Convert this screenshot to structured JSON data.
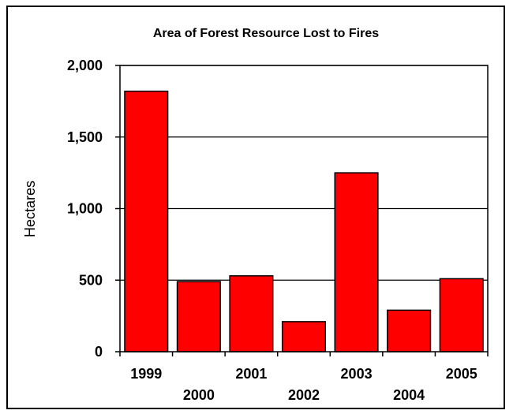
{
  "chart_data": {
    "type": "bar",
    "title": "Area of Forest Resource Lost to Fires",
    "xlabel": "",
    "ylabel": "Hectares",
    "categories": [
      "1999",
      "2000",
      "2001",
      "2002",
      "2003",
      "2004",
      "2005"
    ],
    "values": [
      1820,
      490,
      530,
      210,
      1250,
      290,
      510
    ],
    "ylim": [
      0,
      2000
    ],
    "yticks": [
      0,
      500,
      1000,
      1500,
      2000
    ],
    "ytick_labels": [
      "0",
      "500",
      "1,000",
      "1,500",
      "2,000"
    ],
    "grid": true,
    "legend": "none",
    "bar_color": "#ff0000",
    "bar_edge_color": "#000000"
  }
}
